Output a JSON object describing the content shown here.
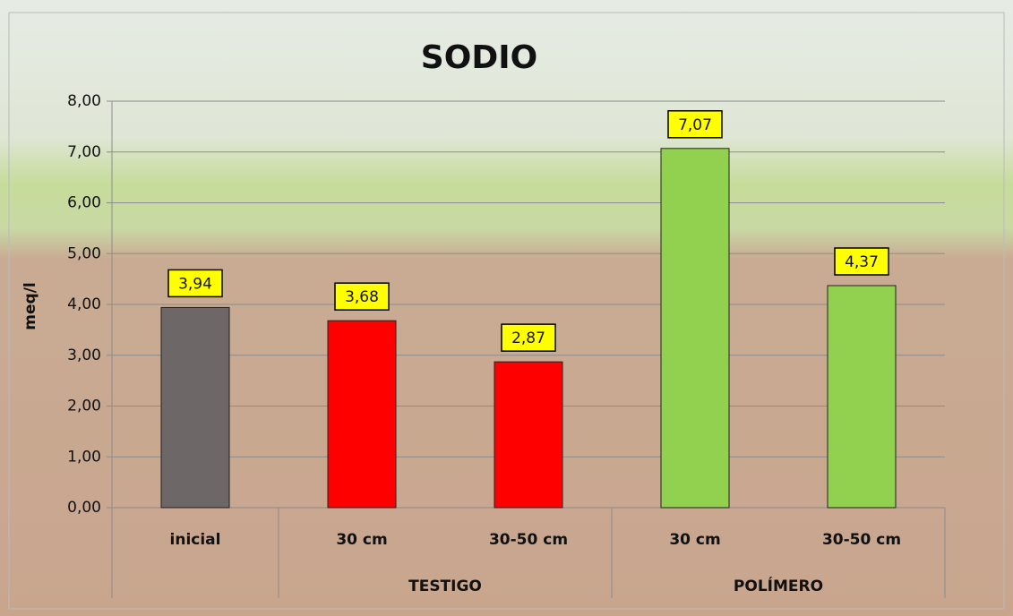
{
  "chart_data": {
    "type": "bar",
    "title": "SODIO",
    "y_label": "meq/l",
    "categories": [
      "inicial",
      "30 cm",
      "30-50 cm",
      "30 cm",
      "30-50 cm"
    ],
    "groups": [
      null,
      "TESTIGO",
      "TESTIGO",
      "POLÍMERO",
      "POLÍMERO"
    ],
    "values": [
      3.94,
      3.68,
      2.87,
      7.07,
      4.37
    ],
    "value_labels": [
      "3,94",
      "3,68",
      "2,87",
      "7,07",
      "4,37"
    ],
    "colors": [
      "#6e6767",
      "#ff0000",
      "#ff0000",
      "#92d050",
      "#92d050"
    ],
    "ylim": [
      0,
      8
    ],
    "yticks": [
      {
        "value": 0,
        "label": "0,00"
      },
      {
        "value": 1,
        "label": "1,00"
      },
      {
        "value": 2,
        "label": "2,00"
      },
      {
        "value": 3,
        "label": "3,00"
      },
      {
        "value": 4,
        "label": "4,00"
      },
      {
        "value": 5,
        "label": "5,00"
      },
      {
        "value": 6,
        "label": "6,00"
      },
      {
        "value": 7,
        "label": "7,00"
      },
      {
        "value": 8,
        "label": "8,00"
      }
    ],
    "grid": true
  }
}
